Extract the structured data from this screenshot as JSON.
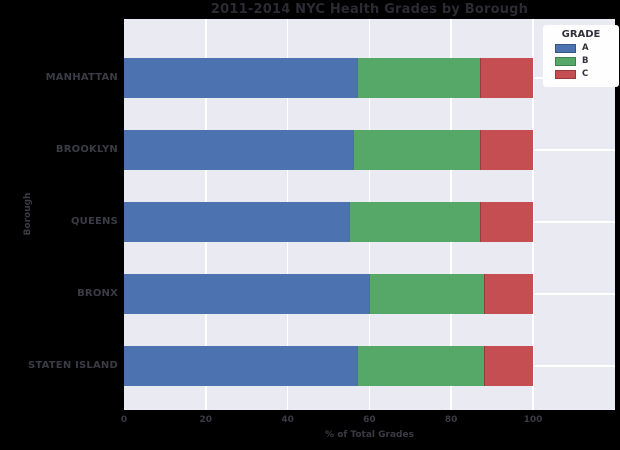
{
  "chart_data": {
    "type": "bar",
    "orientation": "horizontal",
    "stacked": true,
    "title": "2011-2014 NYC Health Grades by Borough",
    "xlabel": "% of Total Grades",
    "ylabel": "Borough",
    "categories": [
      "MANHATTAN",
      "BROOKLYN",
      "QUEENS",
      "BRONX",
      "STATEN ISLAND"
    ],
    "series": [
      {
        "name": "A",
        "color": "#4c72b0",
        "values": [
          57,
          56,
          55,
          60,
          57
        ]
      },
      {
        "name": "B",
        "color": "#55a868",
        "values": [
          30,
          31,
          32,
          28,
          31
        ]
      },
      {
        "name": "C",
        "color": "#c44e52",
        "values": [
          13,
          13,
          13,
          12,
          12
        ]
      }
    ],
    "xlim": [
      0,
      100
    ],
    "xticks": [
      0,
      20,
      40,
      60,
      80,
      100
    ],
    "grid": true,
    "legend": {
      "title": "GRADE",
      "position": "upper-right"
    }
  },
  "colors": {
    "background": "#000000",
    "plot_background": "#eaeaf2",
    "gridline": "#ffffff",
    "text": "#3b3b45",
    "legend_background": "#fefefe"
  }
}
